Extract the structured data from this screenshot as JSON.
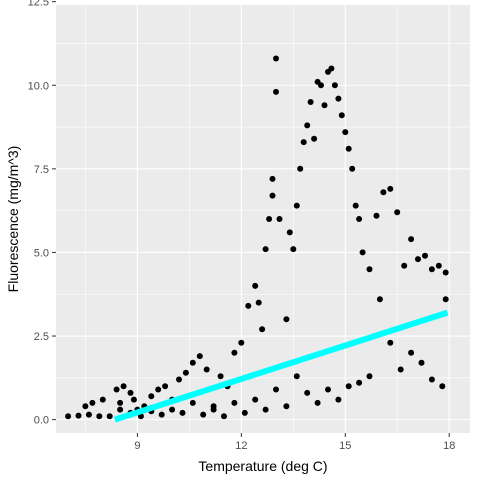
{
  "chart_data": {
    "type": "scatter",
    "title": "",
    "xlabel": "Temperature (deg C)",
    "ylabel": "Fluorescence (mg/m^3)",
    "xlim": [
      6.65,
      18.6
    ],
    "ylim": [
      -0.4,
      12.4
    ],
    "x_ticks": [
      9,
      12,
      15,
      18
    ],
    "x_tick_labels": [
      "9",
      "12",
      "15",
      "18"
    ],
    "y_ticks": [
      0,
      2.5,
      5,
      7.5,
      10,
      12.5
    ],
    "y_tick_labels": [
      "0.0",
      "2.5",
      "5.0",
      "7.5",
      "10.0",
      "12.5"
    ],
    "grid": true,
    "background": "#ebebeb",
    "colors": {
      "points": "#000000",
      "trend": "#00ffff",
      "grid": "#ffffff"
    },
    "series": [
      {
        "type": "scatter",
        "points": [
          [
            7.0,
            0.1
          ],
          [
            7.3,
            0.12
          ],
          [
            7.6,
            0.15
          ],
          [
            7.9,
            0.1
          ],
          [
            8.2,
            0.1
          ],
          [
            8.0,
            0.6
          ],
          [
            7.7,
            0.5
          ],
          [
            7.5,
            0.4
          ],
          [
            8.4,
            0.9
          ],
          [
            8.6,
            1.0
          ],
          [
            8.8,
            0.8
          ],
          [
            8.5,
            0.5
          ],
          [
            8.9,
            0.6
          ],
          [
            9.0,
            0.3
          ],
          [
            9.2,
            0.4
          ],
          [
            9.4,
            0.7
          ],
          [
            9.6,
            0.9
          ],
          [
            9.8,
            1.0
          ],
          [
            10.0,
            0.6
          ],
          [
            10.2,
            1.2
          ],
          [
            10.4,
            1.4
          ],
          [
            10.6,
            1.7
          ],
          [
            10.8,
            1.9
          ],
          [
            11.0,
            1.5
          ],
          [
            11.2,
            0.3
          ],
          [
            11.4,
            1.3
          ],
          [
            11.6,
            1.0
          ],
          [
            11.8,
            2.0
          ],
          [
            12.0,
            2.3
          ],
          [
            12.2,
            3.4
          ],
          [
            12.4,
            4.0
          ],
          [
            12.5,
            3.5
          ],
          [
            12.6,
            2.7
          ],
          [
            12.7,
            5.1
          ],
          [
            12.8,
            6.0
          ],
          [
            12.9,
            6.7
          ],
          [
            13.0,
            10.8
          ],
          [
            13.0,
            9.8
          ],
          [
            12.9,
            7.2
          ],
          [
            13.1,
            6.0
          ],
          [
            13.3,
            3.0
          ],
          [
            13.4,
            5.6
          ],
          [
            13.5,
            5.1
          ],
          [
            13.6,
            6.4
          ],
          [
            13.7,
            7.5
          ],
          [
            13.8,
            8.3
          ],
          [
            13.9,
            8.8
          ],
          [
            14.0,
            9.5
          ],
          [
            14.1,
            8.4
          ],
          [
            14.2,
            10.1
          ],
          [
            14.3,
            10.0
          ],
          [
            14.4,
            9.4
          ],
          [
            14.5,
            10.4
          ],
          [
            14.6,
            10.5
          ],
          [
            14.7,
            10.0
          ],
          [
            14.8,
            9.6
          ],
          [
            14.9,
            9.1
          ],
          [
            15.0,
            8.6
          ],
          [
            15.1,
            8.1
          ],
          [
            15.2,
            7.5
          ],
          [
            15.3,
            6.4
          ],
          [
            15.4,
            6.0
          ],
          [
            15.5,
            5.0
          ],
          [
            15.7,
            4.5
          ],
          [
            15.9,
            6.1
          ],
          [
            16.1,
            6.8
          ],
          [
            16.3,
            6.9
          ],
          [
            16.5,
            6.2
          ],
          [
            16.7,
            4.6
          ],
          [
            16.9,
            5.4
          ],
          [
            17.1,
            4.8
          ],
          [
            17.3,
            4.9
          ],
          [
            17.5,
            4.5
          ],
          [
            17.7,
            4.6
          ],
          [
            17.9,
            4.4
          ],
          [
            17.9,
            3.6
          ],
          [
            17.8,
            1.0
          ],
          [
            17.5,
            1.2
          ],
          [
            17.2,
            1.7
          ],
          [
            16.9,
            2.0
          ],
          [
            16.6,
            1.5
          ],
          [
            16.3,
            2.3
          ],
          [
            16.0,
            3.6
          ],
          [
            15.7,
            1.3
          ],
          [
            15.4,
            1.1
          ],
          [
            15.1,
            1.0
          ],
          [
            14.8,
            0.6
          ],
          [
            14.5,
            0.9
          ],
          [
            14.2,
            0.5
          ],
          [
            13.9,
            0.8
          ],
          [
            13.6,
            1.3
          ],
          [
            13.3,
            0.4
          ],
          [
            13.0,
            0.9
          ],
          [
            12.7,
            0.3
          ],
          [
            12.4,
            0.6
          ],
          [
            12.1,
            0.2
          ],
          [
            11.8,
            0.5
          ],
          [
            11.5,
            0.1
          ],
          [
            11.2,
            0.4
          ],
          [
            10.9,
            0.15
          ],
          [
            10.6,
            0.5
          ],
          [
            10.3,
            0.2
          ],
          [
            10.0,
            0.3
          ],
          [
            9.7,
            0.15
          ],
          [
            9.4,
            0.25
          ],
          [
            9.1,
            0.1
          ],
          [
            8.8,
            0.2
          ],
          [
            8.5,
            0.3
          ]
        ]
      },
      {
        "type": "line",
        "x": [
          8.35,
          17.95
        ],
        "y": [
          0.0,
          3.2
        ]
      }
    ]
  }
}
